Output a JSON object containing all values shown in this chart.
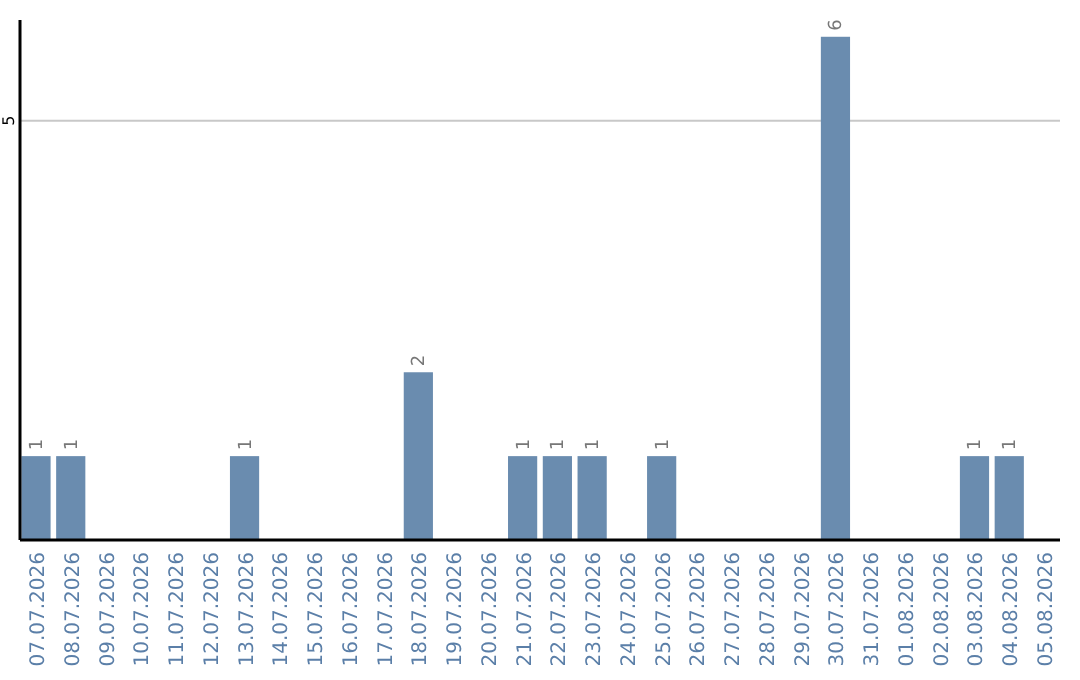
{
  "chart_data": {
    "type": "bar",
    "categories": [
      "07.07.2026",
      "08.07.2026",
      "09.07.2026",
      "10.07.2026",
      "11.07.2026",
      "12.07.2026",
      "13.07.2026",
      "14.07.2026",
      "15.07.2026",
      "16.07.2026",
      "17.07.2026",
      "18.07.2026",
      "19.07.2026",
      "20.07.2026",
      "21.07.2026",
      "22.07.2026",
      "23.07.2026",
      "24.07.2026",
      "25.07.2026",
      "26.07.2026",
      "27.07.2026",
      "28.07.2026",
      "29.07.2026",
      "30.07.2026",
      "31.07.2026",
      "01.08.2026",
      "02.08.2026",
      "03.08.2026",
      "04.08.2026",
      "05.08.2026"
    ],
    "values": [
      1,
      1,
      0,
      0,
      0,
      0,
      1,
      0,
      0,
      0,
      0,
      2,
      0,
      0,
      1,
      1,
      1,
      0,
      1,
      0,
      0,
      0,
      0,
      6,
      0,
      0,
      0,
      1,
      1,
      0
    ],
    "value_labels": [
      "1",
      "1",
      null,
      null,
      null,
      null,
      "1",
      null,
      null,
      null,
      null,
      "2",
      null,
      null,
      "1",
      "1",
      "1",
      null,
      "1",
      null,
      null,
      null,
      null,
      "6",
      null,
      null,
      null,
      "1",
      "1",
      null
    ],
    "color": "#6a8caf",
    "ylim": [
      0,
      6.2
    ],
    "yticks": [
      5
    ],
    "grid": "y"
  }
}
